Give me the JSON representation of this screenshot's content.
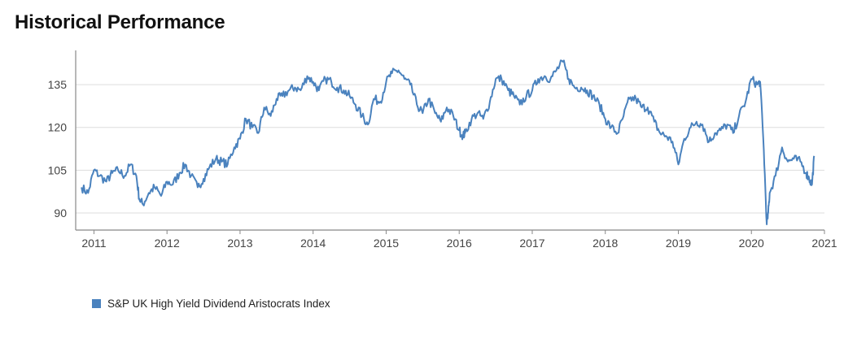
{
  "title": "Historical Performance",
  "colors": {
    "series": "#4a82be",
    "grid": "#dddddd",
    "axis": "#888888"
  },
  "chart_data": {
    "type": "line",
    "title": "Historical Performance",
    "xlabel": "",
    "ylabel": "",
    "grid": "horizontal",
    "legend_position": "bottom-left",
    "xlim": [
      2010.75,
      2021.0
    ],
    "ylim": [
      84,
      147
    ],
    "x_ticks": [
      2011,
      2012,
      2013,
      2014,
      2015,
      2016,
      2017,
      2018,
      2019,
      2020,
      2021
    ],
    "x_tick_labels": [
      "2011",
      "2012",
      "2013",
      "2014",
      "2015",
      "2016",
      "2017",
      "2018",
      "2019",
      "2020",
      "2021"
    ],
    "y_ticks": [
      90,
      105,
      120,
      135
    ],
    "y_tick_labels": [
      "90",
      "105",
      "120",
      "135"
    ],
    "series": [
      {
        "name": "S&P UK High Yield Dividend Aristocrats Index",
        "color": "#4a82be",
        "x": [
          2010.83,
          2010.92,
          2011.0,
          2011.08,
          2011.17,
          2011.25,
          2011.33,
          2011.42,
          2011.5,
          2011.58,
          2011.62,
          2011.67,
          2011.75,
          2011.83,
          2011.92,
          2012.0,
          2012.08,
          2012.17,
          2012.25,
          2012.33,
          2012.42,
          2012.5,
          2012.58,
          2012.67,
          2012.75,
          2012.83,
          2012.92,
          2013.0,
          2013.08,
          2013.17,
          2013.25,
          2013.33,
          2013.42,
          2013.5,
          2013.58,
          2013.67,
          2013.75,
          2013.83,
          2013.92,
          2014.0,
          2014.08,
          2014.17,
          2014.25,
          2014.33,
          2014.42,
          2014.5,
          2014.58,
          2014.67,
          2014.75,
          2014.83,
          2014.92,
          2015.0,
          2015.08,
          2015.17,
          2015.25,
          2015.33,
          2015.42,
          2015.5,
          2015.58,
          2015.67,
          2015.75,
          2015.83,
          2015.92,
          2016.0,
          2016.05,
          2016.08,
          2016.17,
          2016.25,
          2016.33,
          2016.42,
          2016.5,
          2016.58,
          2016.67,
          2016.75,
          2016.83,
          2016.92,
          2017.0,
          2017.08,
          2017.17,
          2017.25,
          2017.33,
          2017.42,
          2017.5,
          2017.58,
          2017.67,
          2017.75,
          2017.83,
          2017.92,
          2018.0,
          2018.08,
          2018.17,
          2018.25,
          2018.33,
          2018.42,
          2018.5,
          2018.58,
          2018.67,
          2018.75,
          2018.83,
          2018.92,
          2019.0,
          2019.08,
          2019.17,
          2019.25,
          2019.33,
          2019.42,
          2019.5,
          2019.58,
          2019.67,
          2019.75,
          2019.83,
          2019.92,
          2020.0,
          2020.08,
          2020.12,
          2020.17,
          2020.21,
          2020.23,
          2020.25,
          2020.33,
          2020.42,
          2020.5,
          2020.58,
          2020.67,
          2020.75,
          2020.79,
          2020.83,
          2020.86
        ],
        "y": [
          99,
          97,
          105,
          103,
          101,
          104,
          105,
          103,
          107,
          103,
          95,
          93,
          97,
          99,
          96,
          101,
          100,
          104,
          107,
          103,
          99,
          102,
          106,
          109,
          108,
          107,
          113,
          116,
          123,
          120,
          118,
          127,
          124,
          130,
          131,
          133,
          134,
          133,
          138,
          136,
          133,
          137,
          136,
          134,
          133,
          131,
          128,
          124,
          121,
          130,
          129,
          136,
          139,
          140,
          137,
          135,
          128,
          125,
          130,
          125,
          122,
          127,
          124,
          119,
          117,
          118,
          123,
          125,
          123,
          129,
          137,
          137,
          133,
          131,
          128,
          131,
          133,
          137,
          138,
          137,
          140,
          143,
          137,
          134,
          134,
          133,
          131,
          128,
          123,
          120,
          118,
          124,
          130,
          130,
          127,
          127,
          122,
          118,
          117,
          115,
          107,
          116,
          120,
          122,
          121,
          115,
          118,
          119,
          121,
          118,
          124,
          129,
          137,
          135,
          136,
          112,
          86,
          90,
          97,
          103,
          113,
          108,
          109,
          108,
          104,
          102,
          100,
          110
        ]
      }
    ]
  }
}
